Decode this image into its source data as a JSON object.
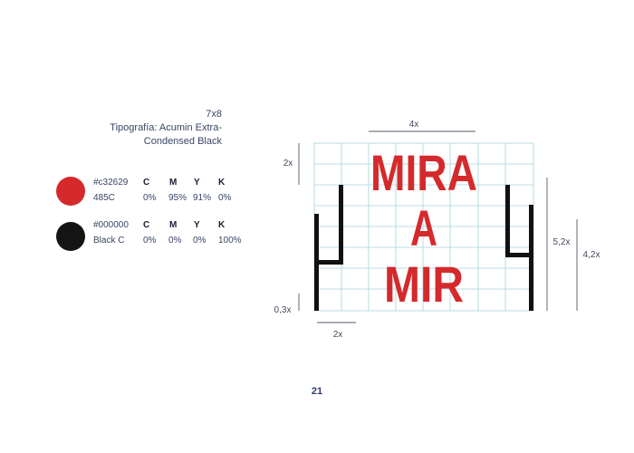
{
  "typography": {
    "grid_label": "7x8",
    "line1": "Tipografía: Acumin Extra-",
    "line2": "Condensed Black"
  },
  "colors": [
    {
      "hex": "#c32629",
      "hex_label": "#c32629",
      "name": "485C",
      "cmyk_headers": [
        "C",
        "M",
        "Y",
        "K"
      ],
      "cmyk_values": [
        "0%",
        "95%",
        "91%",
        "0%"
      ]
    },
    {
      "hex": "#000000",
      "hex_label": "#000000",
      "name": "Black C",
      "cmyk_headers": [
        "C",
        "M",
        "Y",
        "K"
      ],
      "cmyk_values": [
        "0%",
        "0%",
        "0%",
        "100%"
      ]
    }
  ],
  "logo": {
    "line1": "MIRA",
    "line2": "A",
    "line3": "MIR",
    "text_color": "#d42a2c",
    "grid_color": "#a9d3db"
  },
  "measurements": {
    "top": "4x",
    "left": "2x",
    "bottom": "2x",
    "base": "0,3x",
    "right_inner": "5,2x",
    "right_outer": "4,2x"
  },
  "page": {
    "number": "21"
  }
}
